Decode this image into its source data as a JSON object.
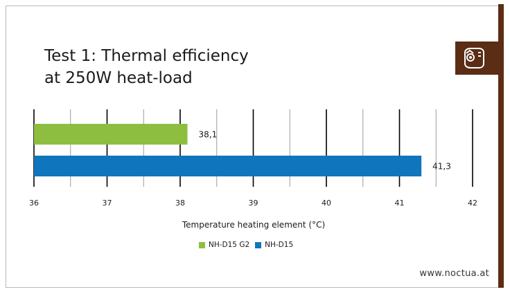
{
  "title_line1": "Test 1: Thermal efficiency",
  "title_line2": "at 250W heat-load",
  "website": "www.noctua.at",
  "logo_icon": "noctua-owl-logo-icon",
  "colors": {
    "brand": "#5a2d14",
    "series_1": "#8ebe3f",
    "series_2": "#0f75bd"
  },
  "chart_data": {
    "type": "bar",
    "orientation": "horizontal",
    "title": "Test 1: Thermal efficiency at 250W heat-load",
    "xlabel": "Temperature heating element (°C)",
    "ylabel": "",
    "xlim": [
      36,
      42
    ],
    "x_ticks": [
      "36",
      "37",
      "38",
      "39",
      "40",
      "41",
      "42"
    ],
    "grid": true,
    "legend_position": "bottom",
    "series": [
      {
        "name": "NH-D15 G2",
        "value": 38.1,
        "label": "38,1",
        "color": "#8ebe3f"
      },
      {
        "name": "NH-D15",
        "value": 41.3,
        "label": "41,3",
        "color": "#0f75bd"
      }
    ]
  }
}
